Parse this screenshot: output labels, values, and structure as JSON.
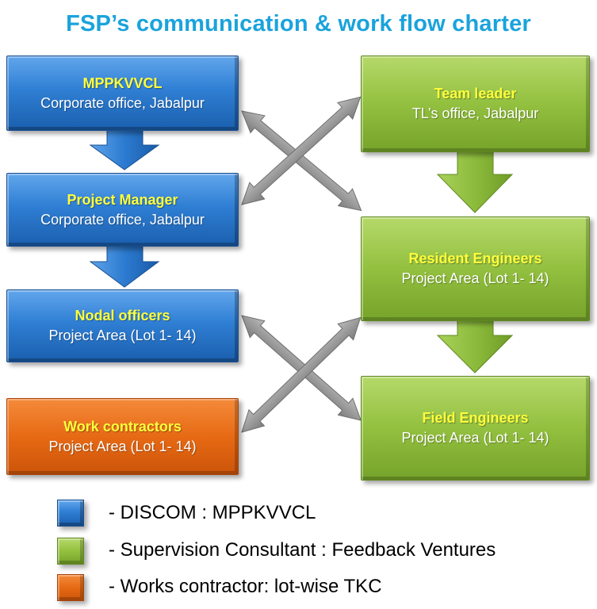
{
  "title": "FSP’s communication & work flow charter",
  "boxes": {
    "discom_hq": {
      "title": "MPPKVVCL",
      "subtitle": "Corporate office, Jabalpur"
    },
    "project_manager": {
      "title": "Project Manager",
      "subtitle": "Corporate office, Jabalpur"
    },
    "nodal_officers": {
      "title": "Nodal officers",
      "subtitle": "Project Area (Lot 1- 14)"
    },
    "work_contractors": {
      "title": "Work contractors",
      "subtitle": "Project Area (Lot 1- 14)"
    },
    "team_leader": {
      "title": "Team leader",
      "subtitle": "TL’s office, Jabalpur"
    },
    "resident_engineers": {
      "title": "Resident Engineers",
      "subtitle": "Project Area (Lot 1- 14)"
    },
    "field_engineers": {
      "title": "Field Engineers",
      "subtitle": "Project Area (Lot 1- 14)"
    }
  },
  "legend": [
    {
      "label": "- DISCOM : MPPKVVCL",
      "color": "#3a87d8"
    },
    {
      "label": "- Supervision Consultant : Feedback Ventures",
      "color": "#8cbb3c"
    },
    {
      "label": "- Works contractor: lot-wise TKC",
      "color": "#e56a12"
    }
  ],
  "colors": {
    "title": "#1aa3dc",
    "box_title": "#ffff3c",
    "connector": "#8f8f8f"
  }
}
